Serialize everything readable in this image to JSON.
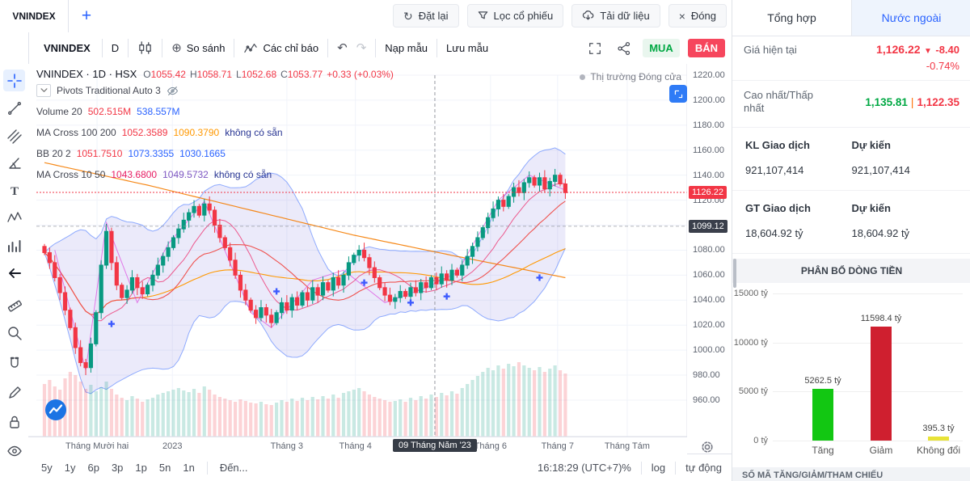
{
  "colors": {
    "accent": "#2962ff",
    "up": "#089981",
    "down": "#f23645",
    "band_fill": "rgba(104,93,216,0.13)",
    "buy_green": "#00a843",
    "sell_red": "#f6465d"
  },
  "topbar": {
    "tab_label": "VNINDEX",
    "add_tab": "+",
    "buttons": [
      {
        "icon": "reset-icon",
        "label": "Đặt lại"
      },
      {
        "icon": "filter-icon",
        "label": "Lọc cổ phiếu"
      },
      {
        "icon": "download-icon",
        "label": "Tải dữ liệu"
      },
      {
        "icon": "close-icon",
        "label": "Đóng"
      }
    ]
  },
  "drawing_tools": [
    "crosshair",
    "trendline",
    "pitchfork",
    "brush",
    "text",
    "xabcd-pattern",
    "forecast",
    "arrow",
    "ruler",
    "zoom",
    "magnet",
    "edit",
    "lock",
    "eye"
  ],
  "chart_toolbar": {
    "symbol": "VNINDEX",
    "interval": "D",
    "compare": "So sánh",
    "indicators": "Các chỉ báo",
    "load_template": "Nạp mẫu",
    "save_template": "Lưu mẫu",
    "buy": "MUA",
    "sell": "BÁN"
  },
  "legend": {
    "title": "VNINDEX · 1D · HSX",
    "o_label": "O",
    "o": "1055.42",
    "h_label": "H",
    "h": "1058.71",
    "l_label": "L",
    "l": "1052.68",
    "c_label": "C",
    "c": "1053.77",
    "change": "+0.33 (+0.03%)",
    "market_status": "Thị trường Đóng cửa",
    "rows": [
      {
        "name": "Pivots Traditional Auto 3"
      },
      {
        "name": "Volume 20",
        "v1": "502.515M",
        "v2": "538.557M"
      },
      {
        "name": "MA Cross 100 200",
        "v1": "1052.3589",
        "v2": "1090.3790",
        "v3": "không có sẵn"
      },
      {
        "name": "BB 20 2",
        "v1": "1051.7510",
        "v2": "1073.3355",
        "v3": "1030.1665"
      },
      {
        "name": "MA Cross 10 50",
        "v1": "1043.6800",
        "v2": "1049.5732",
        "v3": "không có sẵn"
      }
    ]
  },
  "bottom_bar": {
    "ranges": [
      "5y",
      "1y",
      "6p",
      "3p",
      "1p",
      "5n",
      "1n"
    ],
    "goto": "Đến...",
    "clock": "16:18:29 (UTC+7)",
    "percent": "%",
    "log": "log",
    "auto": "tự động"
  },
  "side_panel": {
    "tabs": [
      {
        "label": "Tổng hợp"
      },
      {
        "label": "Nước ngoài"
      }
    ],
    "current_price_label": "Giá hiện tại",
    "current_price": "1,126.22",
    "change_arrow": "▼",
    "change": "-8.40",
    "change_pct": "-0.74%",
    "hi_lo_label": "Cao nhất/Thấp nhất",
    "high": "1,135.81",
    "hl_sep": "|",
    "low": "1,122.35",
    "kl_label": "KL Giao dịch",
    "kl_expected_label": "Dự kiến",
    "kl_value": "921,107,414",
    "kl_expected": "921,107,414",
    "gt_label": "GT Giao dịch",
    "gt_expected_label": "Dự kiến",
    "gt_value": "18,604.92 tỷ",
    "gt_expected": "18,604.92 tỷ",
    "money_flow_title": "PHÂN BỔ DÒNG TIỀN",
    "bottom_section": "SỐ MÃ TĂNG/GIẢM/THAM CHIẾU"
  },
  "chart_data": [
    {
      "type": "candlestick",
      "symbol": "VNINDEX",
      "interval": "1D",
      "exchange": "HSX",
      "ohlc_legend": {
        "open": 1055.42,
        "high": 1058.71,
        "low": 1052.68,
        "close": 1053.77,
        "change": "+0.33 (+0.03%)"
      },
      "last_price": 1126.22,
      "level_badge": 1099.12,
      "y_ticks": [
        1220,
        1200,
        1180,
        1160,
        1140,
        1120,
        1100,
        1080,
        1060,
        1040,
        1020,
        1000,
        980,
        960
      ],
      "closes": [
        1078,
        1070,
        1058,
        1046,
        1032,
        1018,
        1002,
        990,
        986,
        1005,
        1030,
        1068,
        1095,
        1070,
        1052,
        1042,
        1048,
        1058,
        1050,
        1045,
        1052,
        1060,
        1068,
        1075,
        1082,
        1090,
        1097,
        1104,
        1110,
        1115,
        1108,
        1117,
        1112,
        1100,
        1090,
        1082,
        1072,
        1060,
        1048,
        1040,
        1032,
        1026,
        1034,
        1028,
        1022,
        1030,
        1038,
        1032,
        1042,
        1036,
        1046,
        1040,
        1050,
        1044,
        1054,
        1048,
        1058,
        1052,
        1060,
        1070,
        1076,
        1080,
        1074,
        1066,
        1058,
        1050,
        1044,
        1039,
        1042,
        1047,
        1043,
        1050,
        1046,
        1054,
        1050,
        1058,
        1053,
        1061,
        1056,
        1064,
        1060,
        1068,
        1075,
        1083,
        1090,
        1098,
        1106,
        1113,
        1120,
        1115,
        1123,
        1130,
        1126,
        1134,
        1138,
        1132,
        1138,
        1129,
        1135,
        1140,
        1133,
        1126
      ],
      "volumes_m": [
        650,
        700,
        620,
        580,
        720,
        800,
        760,
        680,
        590,
        640,
        560,
        610,
        680,
        590,
        520,
        480,
        450,
        500,
        470,
        430,
        460,
        480,
        520,
        540,
        560,
        580,
        600,
        570,
        550,
        590,
        540,
        620,
        580,
        520,
        490,
        470,
        450,
        430,
        460,
        440,
        420,
        410,
        430,
        400,
        390,
        420,
        450,
        430,
        470,
        440,
        480,
        450,
        490,
        460,
        500,
        470,
        520,
        480,
        540,
        560,
        580,
        600,
        560,
        520,
        490,
        470,
        450,
        430,
        440,
        460,
        430,
        480,
        450,
        500,
        470,
        520,
        490,
        540,
        510,
        560,
        530,
        600,
        650,
        700,
        750,
        800,
        850,
        820,
        880,
        840,
        900,
        870,
        920,
        880,
        850,
        820,
        860,
        800,
        840,
        880,
        820,
        780
      ],
      "ma200_path": [
        [
          0,
          1150
        ],
        [
          20,
          1132
        ],
        [
          40,
          1112
        ],
        [
          60,
          1092
        ],
        [
          80,
          1075
        ],
        [
          101,
          1058
        ]
      ],
      "pivot_zigzag": [
        [
          2,
          1080
        ],
        [
          8,
          984
        ],
        [
          12,
          1102
        ],
        [
          18,
          1038
        ],
        [
          24,
          1085
        ],
        [
          31,
          1119
        ],
        [
          40,
          1030
        ],
        [
          44,
          1018
        ],
        [
          52,
          1056
        ],
        [
          58,
          1064
        ],
        [
          66,
          1038
        ],
        [
          74,
          1050
        ],
        [
          80,
          1062
        ],
        [
          88,
          1120
        ],
        [
          94,
          1140
        ],
        [
          101,
          1128
        ]
      ],
      "cross_markers": [
        [
          13,
          1021
        ],
        [
          45,
          1047
        ],
        [
          62,
          1054
        ],
        [
          71,
          1038
        ],
        [
          78,
          1043
        ],
        [
          96,
          1058
        ]
      ],
      "crosshair_i": 75.7,
      "crosshair_label": "09 Tháng Năm '23",
      "x_labels": [
        {
          "text": "Tháng Mười hai",
          "i": 10.2
        },
        {
          "text": "2023",
          "i": 24.8
        },
        {
          "text": "Tháng 3",
          "i": 47
        },
        {
          "text": "Tháng 4",
          "i": 60.3
        },
        {
          "text": "Tháng 6",
          "i": 86.5
        },
        {
          "text": "Tháng 7",
          "i": 99.5
        },
        {
          "text": "Tháng Tám",
          "i": 113
        }
      ]
    },
    {
      "type": "bar",
      "title": "PHÂN BỔ DÒNG TIỀN",
      "categories": [
        "Tăng",
        "Giảm",
        "Không đổi"
      ],
      "values": [
        5262.5,
        11598.4,
        395.3
      ],
      "labels": [
        "5262.5 tỷ",
        "11598.4 tỷ",
        "395.3 tỷ"
      ],
      "colors": [
        "#12c712",
        "#cf1f2f",
        "#e8e337"
      ],
      "centers": [
        62,
        134,
        205
      ],
      "y_ticks": [
        "15000 tỷ",
        "10000 tỷ",
        "5000 tỷ",
        "0 tỷ"
      ],
      "ymax": 15000,
      "ylabel": "",
      "xlabel": ""
    }
  ]
}
